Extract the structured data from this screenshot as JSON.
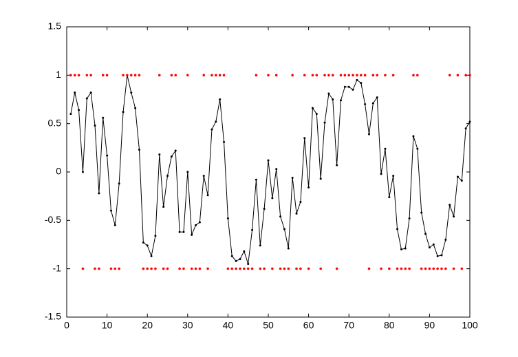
{
  "chart_data": {
    "type": "line",
    "x": [
      1,
      2,
      3,
      4,
      5,
      6,
      7,
      8,
      9,
      10,
      11,
      12,
      13,
      14,
      15,
      16,
      17,
      18,
      19,
      20,
      21,
      22,
      23,
      24,
      25,
      26,
      27,
      28,
      29,
      30,
      31,
      32,
      33,
      34,
      35,
      36,
      37,
      38,
      39,
      40,
      41,
      42,
      43,
      44,
      45,
      46,
      47,
      48,
      49,
      50,
      51,
      52,
      53,
      54,
      55,
      56,
      57,
      58,
      59,
      60,
      61,
      62,
      63,
      64,
      65,
      66,
      67,
      68,
      69,
      70,
      71,
      72,
      73,
      74,
      75,
      76,
      77,
      78,
      79,
      80,
      81,
      82,
      83,
      84,
      85,
      86,
      87,
      88,
      89,
      90,
      91,
      92,
      93,
      94,
      95,
      96,
      97,
      98,
      99,
      100
    ],
    "series": [
      {
        "color": "#000000",
        "mode": "line+markers",
        "values": [
          0.6,
          0.82,
          0.64,
          0.0,
          0.76,
          0.82,
          0.48,
          -0.22,
          0.56,
          0.17,
          -0.4,
          -0.55,
          -0.12,
          0.62,
          1.0,
          0.82,
          0.66,
          0.23,
          -0.73,
          -0.76,
          -0.87,
          -0.66,
          0.18,
          -0.36,
          -0.04,
          0.16,
          0.22,
          -0.62,
          -0.62,
          0.0,
          -0.65,
          -0.55,
          -0.52,
          -0.04,
          -0.24,
          0.44,
          0.52,
          0.75,
          0.31,
          -0.48,
          -0.87,
          -0.92,
          -0.9,
          -0.82,
          -0.95,
          -0.6,
          -0.08,
          -0.76,
          -0.38,
          0.12,
          -0.27,
          0.03,
          -0.46,
          -0.59,
          -0.79,
          -0.06,
          -0.43,
          -0.31,
          0.35,
          -0.16,
          0.66,
          0.6,
          -0.07,
          0.51,
          0.81,
          0.75,
          0.07,
          0.74,
          0.88,
          0.88,
          0.85,
          0.95,
          0.92,
          0.7,
          0.39,
          0.71,
          0.77,
          -0.02,
          0.24,
          -0.26,
          -0.04,
          -0.59,
          -0.8,
          -0.79,
          -0.48,
          0.37,
          0.24,
          -0.42,
          -0.64,
          -0.78,
          -0.75,
          -0.87,
          -0.86,
          -0.7,
          -0.34,
          -0.46,
          -0.05,
          -0.09,
          0.45,
          0.52
        ]
      },
      {
        "color": "#ff0000",
        "mode": "markers",
        "values": [
          1,
          1,
          1,
          -1,
          1,
          1,
          -1,
          -1,
          1,
          1,
          -1,
          -1,
          -1,
          1,
          1,
          1,
          1,
          1,
          -1,
          -1,
          -1,
          -1,
          1,
          -1,
          -1,
          1,
          1,
          -1,
          -1,
          1,
          -1,
          -1,
          -1,
          1,
          -1,
          1,
          1,
          1,
          1,
          -1,
          -1,
          -1,
          -1,
          -1,
          -1,
          -1,
          1,
          -1,
          -1,
          1,
          -1,
          1,
          -1,
          -1,
          -1,
          1,
          -1,
          -1,
          1,
          -1,
          1,
          1,
          -1,
          1,
          1,
          1,
          -1,
          1,
          1,
          1,
          1,
          1,
          1,
          1,
          -1,
          1,
          1,
          -1,
          1,
          -1,
          1,
          -1,
          -1,
          -1,
          -1,
          1,
          1,
          -1,
          -1,
          -1,
          -1,
          -1,
          -1,
          -1,
          1,
          -1,
          1,
          -1,
          1,
          1
        ]
      }
    ],
    "xlim": [
      0,
      100
    ],
    "xticks": [
      0,
      10,
      20,
      30,
      40,
      50,
      60,
      70,
      80,
      90,
      100
    ],
    "ylim": [
      -1.5,
      1.5
    ],
    "yticks": [
      -1.5,
      -1,
      -0.5,
      0,
      0.5,
      1,
      1.5
    ],
    "grid": false
  }
}
